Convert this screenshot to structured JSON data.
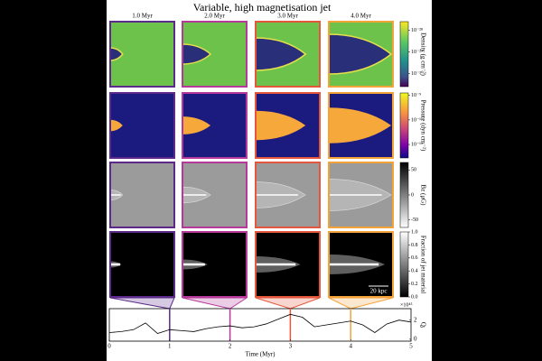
{
  "figure": {
    "title": "Variable, high magnetisation jet",
    "snapshots": [
      {
        "label": "1.0 Myr",
        "time": 1,
        "color": "#5b2a8a"
      },
      {
        "label": "2.0 Myr",
        "time": 2,
        "color": "#b5389a"
      },
      {
        "label": "3.0 Myr",
        "time": 3,
        "color": "#e4573c"
      },
      {
        "label": "4.0 Myr",
        "time": 4,
        "color": "#f4a33a"
      }
    ],
    "colorbars": [
      {
        "label": "Density (g cm⁻³)",
        "lim": [
          -30.6,
          -27.6
        ],
        "ticks": [
          {
            "value": -28,
            "label": "10⁻²⁸"
          },
          {
            "value": -29,
            "label": "10⁻²⁹"
          },
          {
            "value": -30,
            "label": "10⁻³⁰"
          }
        ]
      },
      {
        "label": "Pressure (dyn cm⁻²)",
        "lim": [
          -14.1,
          -8.8
        ],
        "ticks": [
          {
            "value": -9,
            "label": "10⁻⁹"
          },
          {
            "value": -11,
            "label": "10⁻¹¹"
          },
          {
            "value": -13,
            "label": "10⁻¹³"
          }
        ]
      },
      {
        "label": "Bz (μG)",
        "lim": [
          -65,
          65
        ],
        "ticks": [
          50,
          0,
          -50
        ]
      },
      {
        "label": "Fraction of jet material",
        "lim": [
          0,
          1
        ],
        "ticks": [
          {
            "value": 1,
            "label": "1.0"
          },
          {
            "value": 0.8,
            "label": "0.8"
          },
          {
            "value": 0.6,
            "label": "0.6"
          },
          {
            "value": 0.4,
            "label": "0.4"
          },
          {
            "value": 0.2,
            "label": "0.2"
          },
          {
            "value": 0,
            "label": "0.0"
          }
        ]
      }
    ],
    "scale_bar": "20 kpc"
  },
  "chart_data": {
    "type": "line",
    "xlabel": "Time (Myr)",
    "ylabel": "Qⱼ",
    "y_multiplier": "×10⁴⁵",
    "x": [
      0,
      0.2,
      0.4,
      0.6,
      0.8,
      1.0,
      1.2,
      1.4,
      1.6,
      1.8,
      2.0,
      2.2,
      2.4,
      2.6,
      2.8,
      3.0,
      3.2,
      3.4,
      3.6,
      3.8,
      4.0,
      4.2,
      4.4,
      4.6,
      4.8,
      5.0
    ],
    "values": [
      0.7,
      0.8,
      1.0,
      1.7,
      0.6,
      1.0,
      0.9,
      0.8,
      1.1,
      1.3,
      1.4,
      1.2,
      1.3,
      1.6,
      2.1,
      2.6,
      2.3,
      1.3,
      1.5,
      1.7,
      1.9,
      1.5,
      0.7,
      1.6,
      2.0,
      1.8
    ],
    "color": "#000000",
    "xlim": [
      0,
      5
    ],
    "xticks": [
      0,
      1,
      2,
      3,
      4,
      5
    ],
    "ylim": [
      -0.2,
      3.2
    ],
    "yticks": [
      0,
      2
    ]
  }
}
